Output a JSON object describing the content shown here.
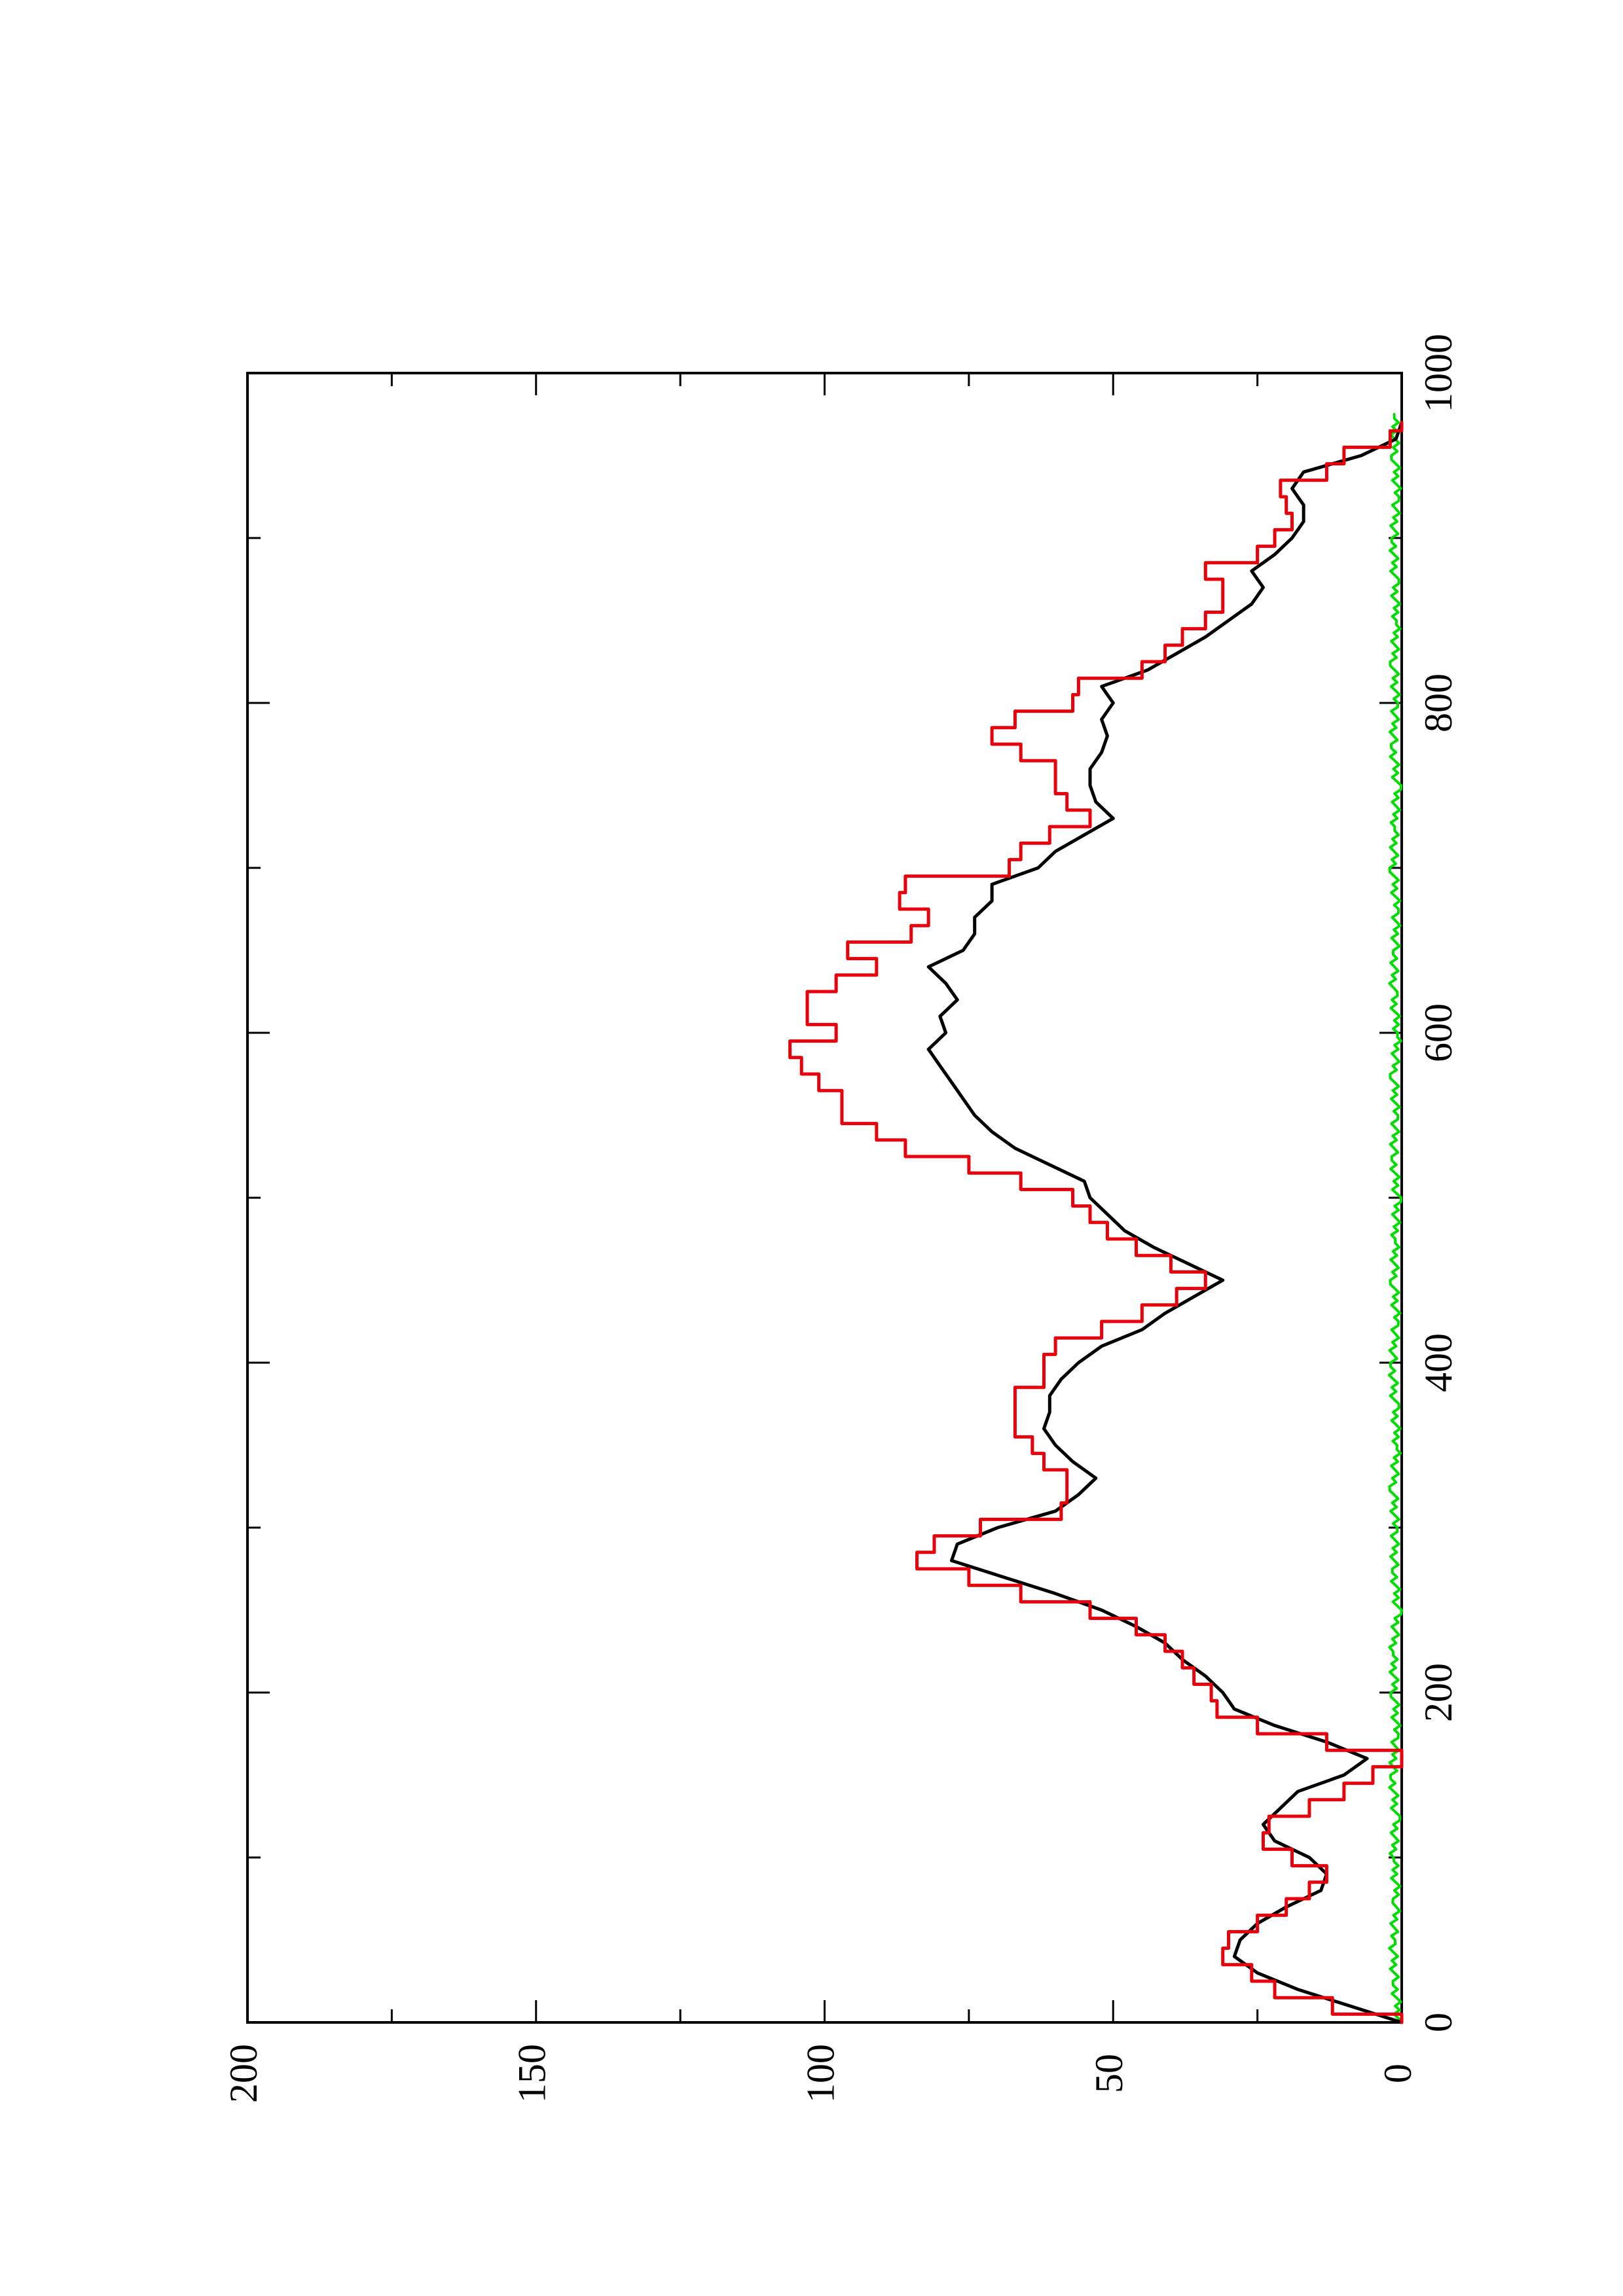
{
  "chart_data": {
    "type": "line",
    "orientation": "rotated 90 degrees counter-clockwise (x axis runs vertically, y axis horizontally)",
    "title": "",
    "xlabel": "",
    "ylabel": "",
    "xlim": [
      0,
      1000
    ],
    "ylim": [
      0,
      200
    ],
    "x_ticks": [
      0,
      200,
      400,
      600,
      800,
      1000
    ],
    "x_tick_labels": [
      "0",
      "200",
      "400",
      "600",
      "800",
      "1000"
    ],
    "x_minor_ticks": [
      100,
      300,
      500,
      700,
      900
    ],
    "y_ticks": [
      0,
      50,
      100,
      150,
      200
    ],
    "y_tick_labels": [
      "0",
      "50",
      "100",
      "150",
      "200"
    ],
    "y_minor_ticks": [
      25,
      75,
      125,
      175
    ],
    "grid": false,
    "legend": "none",
    "series": [
      {
        "color": "#000000",
        "style": "smooth",
        "x": [
          0,
          10,
          20,
          30,
          40,
          50,
          60,
          70,
          80,
          90,
          100,
          110,
          120,
          130,
          140,
          150,
          160,
          170,
          180,
          190,
          200,
          210,
          220,
          230,
          240,
          250,
          260,
          270,
          280,
          290,
          300,
          310,
          320,
          330,
          340,
          350,
          360,
          370,
          380,
          390,
          400,
          410,
          420,
          430,
          440,
          450,
          460,
          470,
          480,
          490,
          500,
          510,
          520,
          530,
          540,
          550,
          560,
          570,
          580,
          590,
          600,
          610,
          620,
          630,
          640,
          650,
          660,
          670,
          680,
          690,
          700,
          710,
          720,
          730,
          740,
          750,
          760,
          770,
          780,
          790,
          800,
          810,
          820,
          830,
          840,
          850,
          860,
          870,
          880,
          890,
          900,
          910,
          920,
          930,
          940,
          950,
          960,
          970
        ],
        "y": [
          0,
          9,
          18,
          25,
          29,
          28,
          25,
          20,
          14,
          13,
          16,
          22,
          24,
          21,
          18,
          10,
          6,
          13,
          22,
          29,
          31,
          34,
          38,
          41,
          46,
          52,
          60,
          69,
          78,
          77,
          70,
          60,
          56,
          53,
          57,
          60,
          62,
          61,
          61,
          59,
          56,
          52,
          45,
          41,
          36,
          31,
          37,
          43,
          48,
          51,
          54,
          55,
          61,
          67,
          71,
          74,
          76,
          78,
          80,
          82,
          79,
          80,
          77,
          79,
          82,
          76,
          74,
          74,
          71,
          71,
          63,
          60,
          55,
          50,
          53,
          54,
          54,
          52,
          51,
          52,
          50,
          52,
          44,
          39,
          34,
          30,
          26,
          24,
          26,
          22,
          19,
          17,
          17,
          19,
          17,
          7,
          1,
          0
        ]
      },
      {
        "color": "#e8000b",
        "style": "step",
        "x": [
          0,
          10,
          20,
          30,
          40,
          50,
          60,
          70,
          80,
          90,
          100,
          110,
          120,
          130,
          140,
          150,
          160,
          170,
          180,
          190,
          200,
          210,
          220,
          230,
          240,
          250,
          260,
          270,
          280,
          290,
          300,
          310,
          320,
          330,
          340,
          350,
          360,
          370,
          380,
          390,
          400,
          410,
          420,
          430,
          440,
          450,
          460,
          470,
          480,
          490,
          500,
          510,
          520,
          530,
          540,
          550,
          560,
          570,
          580,
          590,
          600,
          610,
          620,
          630,
          640,
          650,
          660,
          670,
          680,
          690,
          700,
          710,
          720,
          730,
          740,
          750,
          760,
          770,
          780,
          790,
          800,
          810,
          820,
          830,
          840,
          850,
          860,
          870,
          880,
          890,
          900,
          910,
          920,
          930,
          940,
          950,
          960,
          970
        ],
        "y": [
          0,
          12,
          22,
          26,
          31,
          30,
          25,
          20,
          16,
          13,
          19,
          24,
          23,
          16,
          10,
          5,
          0,
          13,
          25,
          32,
          33,
          36,
          38,
          41,
          46,
          54,
          66,
          75,
          84,
          81,
          73,
          59,
          58,
          58,
          62,
          64,
          67,
          67,
          67,
          62,
          62,
          60,
          52,
          45,
          39,
          34,
          40,
          46,
          51,
          54,
          57,
          66,
          75,
          86,
          91,
          97,
          97,
          101,
          104,
          106,
          98,
          103,
          103,
          98,
          91,
          96,
          85,
          82,
          87,
          86,
          68,
          66,
          61,
          54,
          58,
          60,
          60,
          66,
          71,
          67,
          57,
          56,
          45,
          41,
          38,
          34,
          31,
          31,
          34,
          25,
          22,
          19,
          20,
          21,
          13,
          10,
          2,
          0
        ]
      },
      {
        "color": "#00dd00",
        "style": "noisy",
        "x": [
          0,
          25,
          50,
          75,
          100,
          125,
          150,
          175,
          200,
          225,
          250,
          275,
          300,
          325,
          350,
          375,
          400,
          425,
          450,
          475,
          500,
          525,
          550,
          575,
          600,
          625,
          650,
          675,
          700,
          725,
          750,
          775,
          800,
          825,
          850,
          875,
          900,
          925,
          950,
          975
        ],
        "y": [
          0.5,
          1.2,
          1.5,
          0.8,
          1.4,
          1.0,
          1.6,
          0.9,
          1.2,
          1.5,
          0.7,
          1.3,
          1.1,
          1.4,
          0.8,
          1.2,
          1.6,
          0.9,
          1.3,
          1.1,
          0.8,
          1.4,
          1.0,
          1.3,
          0.7,
          1.5,
          1.1,
          0.9,
          1.4,
          1.2,
          0.8,
          1.5,
          1.0,
          1.3,
          0.9,
          1.2,
          1.4,
          0.8,
          1.1,
          1.3
        ]
      }
    ]
  }
}
